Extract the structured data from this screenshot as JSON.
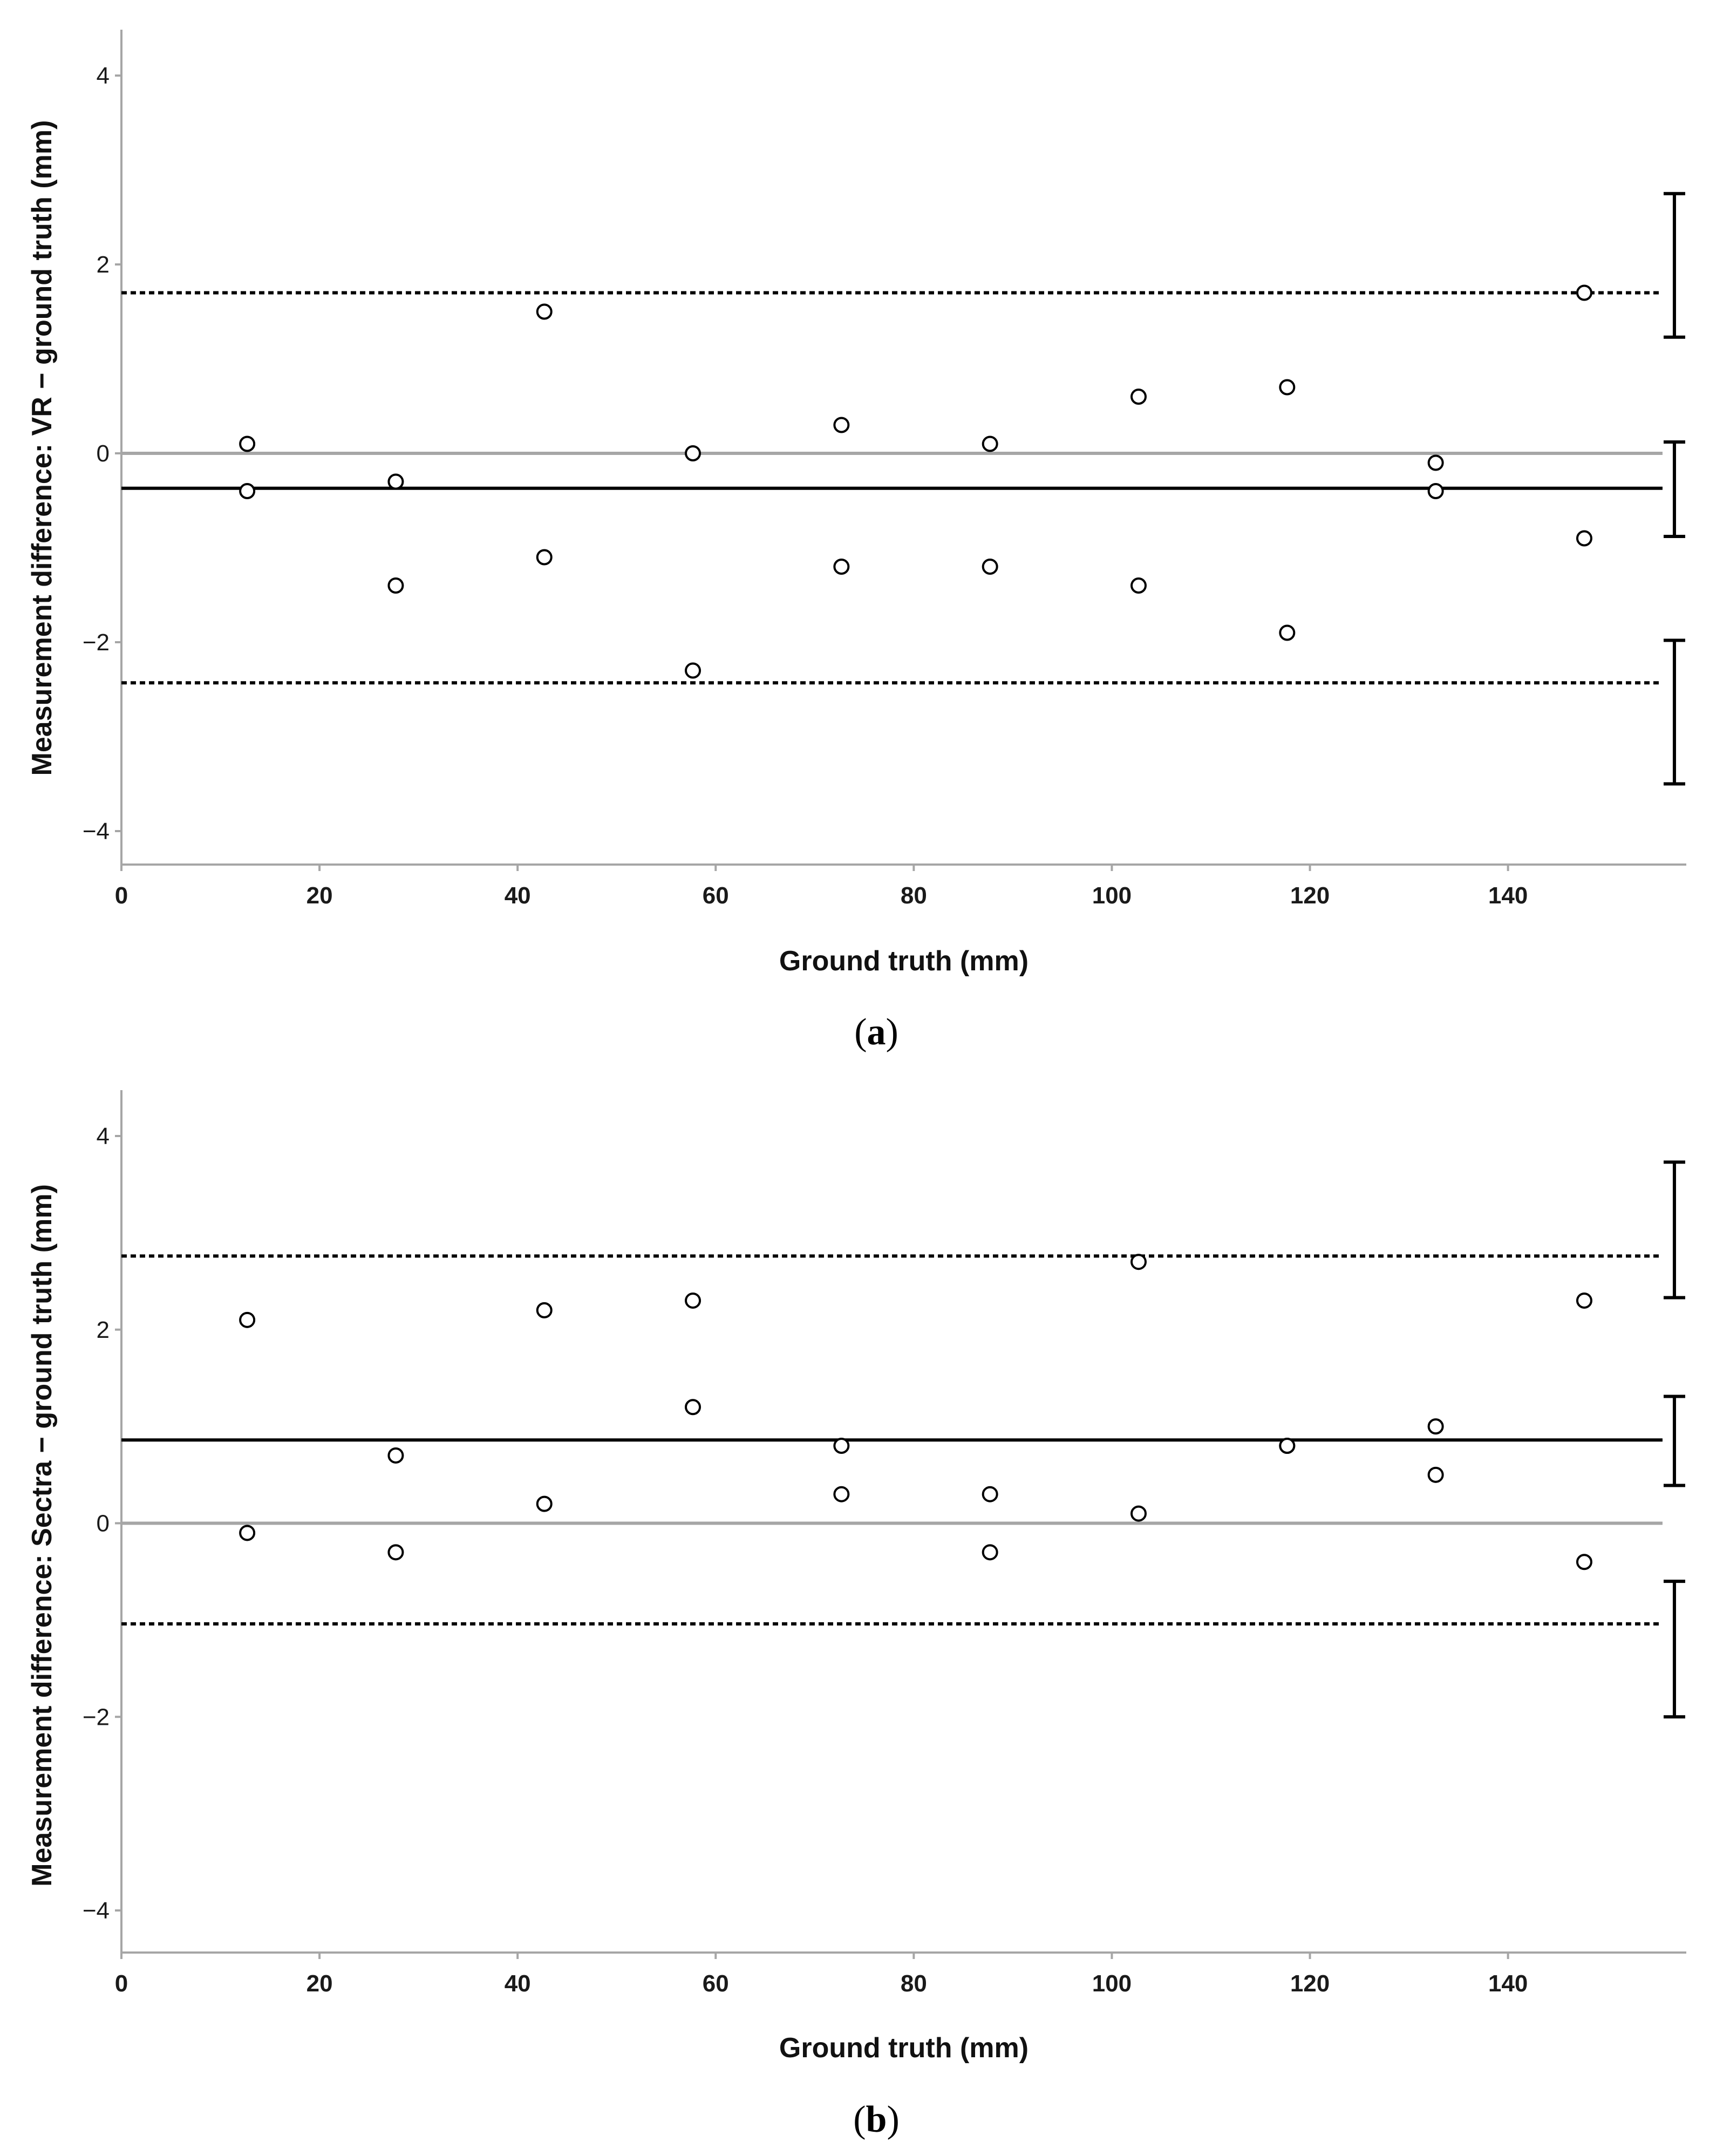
{
  "figure": {
    "panels": [
      {
        "panel_label_open": "(",
        "panel_label_letter": "a",
        "panel_label_close": ")"
      },
      {
        "panel_label_open": "(",
        "panel_label_letter": "b",
        "panel_label_close": ")"
      }
    ]
  },
  "chart_data": [
    {
      "type": "scatter",
      "title": "",
      "xlabel": "Ground truth (mm)",
      "ylabel": "Measurement difference: VR − ground truth (mm)",
      "xlim": [
        0,
        158
      ],
      "ylim": [
        -4.4,
        4.4
      ],
      "x_ticks": [
        0,
        20,
        40,
        60,
        80,
        100,
        120,
        140
      ],
      "x_tick_labels": [
        "0",
        "20",
        "40",
        "60",
        "80",
        "100",
        "120",
        "140"
      ],
      "y_ticks": [
        -4,
        -2,
        0,
        2,
        4
      ],
      "y_tick_labels": [
        "−4",
        "−2",
        "0",
        "2",
        "4"
      ],
      "grid": false,
      "points": [
        {
          "x": 12.7,
          "y": 0.1
        },
        {
          "x": 12.7,
          "y": -0.4
        },
        {
          "x": 27.7,
          "y": -0.3
        },
        {
          "x": 27.7,
          "y": -1.4
        },
        {
          "x": 42.7,
          "y": 1.5
        },
        {
          "x": 42.7,
          "y": -1.1
        },
        {
          "x": 57.7,
          "y": 0.0
        },
        {
          "x": 57.7,
          "y": -2.3
        },
        {
          "x": 72.7,
          "y": 0.3
        },
        {
          "x": 72.7,
          "y": -1.2
        },
        {
          "x": 87.7,
          "y": 0.1
        },
        {
          "x": 87.7,
          "y": -1.2
        },
        {
          "x": 102.7,
          "y": 0.6
        },
        {
          "x": 102.7,
          "y": -1.4
        },
        {
          "x": 117.7,
          "y": 0.7
        },
        {
          "x": 117.7,
          "y": -1.9
        },
        {
          "x": 132.7,
          "y": -0.1
        },
        {
          "x": 132.7,
          "y": -0.4
        },
        {
          "x": 147.7,
          "y": 1.7
        },
        {
          "x": 147.7,
          "y": -0.9
        }
      ],
      "zero_line": 0,
      "mean_difference": -0.37,
      "upper_limit_of_agreement": 1.7,
      "lower_limit_of_agreement": -2.43,
      "confidence_intervals": [
        {
          "for": "upper_limit",
          "low": 1.23,
          "high": 2.75
        },
        {
          "for": "mean",
          "low": -0.88,
          "high": 0.12
        },
        {
          "for": "lower_limit",
          "low": -3.5,
          "high": -1.98
        }
      ],
      "colors": {
        "points": "#000000",
        "mean_line": "#000000",
        "limit_lines": "#000000",
        "zero_line": "#a6a6a6",
        "axes": "#a6a6a6"
      }
    },
    {
      "type": "scatter",
      "title": "",
      "xlabel": "Ground truth (mm)",
      "ylabel": "Measurement difference: Sectra − ground truth (mm)",
      "xlim": [
        0,
        158
      ],
      "ylim": [
        -4.4,
        4.4
      ],
      "x_ticks": [
        0,
        20,
        40,
        60,
        80,
        100,
        120,
        140
      ],
      "x_tick_labels": [
        "0",
        "20",
        "40",
        "60",
        "80",
        "100",
        "120",
        "140"
      ],
      "y_ticks": [
        -4,
        -2,
        0,
        2,
        4
      ],
      "y_tick_labels": [
        "−4",
        "−2",
        "0",
        "2",
        "4"
      ],
      "grid": false,
      "points": [
        {
          "x": 12.7,
          "y": 2.1
        },
        {
          "x": 12.7,
          "y": -0.1
        },
        {
          "x": 27.7,
          "y": 0.7
        },
        {
          "x": 27.7,
          "y": -0.3
        },
        {
          "x": 42.7,
          "y": 2.2
        },
        {
          "x": 42.7,
          "y": 0.2
        },
        {
          "x": 57.7,
          "y": 2.3
        },
        {
          "x": 57.7,
          "y": 1.2
        },
        {
          "x": 72.7,
          "y": 0.8
        },
        {
          "x": 72.7,
          "y": 0.3
        },
        {
          "x": 87.7,
          "y": 0.3
        },
        {
          "x": 87.7,
          "y": -0.3
        },
        {
          "x": 102.7,
          "y": 2.7
        },
        {
          "x": 102.7,
          "y": 0.1
        },
        {
          "x": 117.7,
          "y": 0.8
        },
        {
          "x": 117.7,
          "y": 0.8
        },
        {
          "x": 132.7,
          "y": 1.0
        },
        {
          "x": 132.7,
          "y": 0.5
        },
        {
          "x": 147.7,
          "y": 2.3
        },
        {
          "x": 147.7,
          "y": -0.4
        }
      ],
      "zero_line": 0,
      "mean_difference": 0.86,
      "upper_limit_of_agreement": 2.76,
      "lower_limit_of_agreement": -1.04,
      "confidence_intervals": [
        {
          "for": "upper_limit",
          "low": 2.33,
          "high": 3.73
        },
        {
          "for": "mean",
          "low": 0.39,
          "high": 1.31
        },
        {
          "for": "lower_limit",
          "low": -2.0,
          "high": -0.6
        }
      ],
      "colors": {
        "points": "#000000",
        "mean_line": "#000000",
        "limit_lines": "#000000",
        "zero_line": "#a6a6a6",
        "axes": "#a6a6a6"
      }
    }
  ]
}
